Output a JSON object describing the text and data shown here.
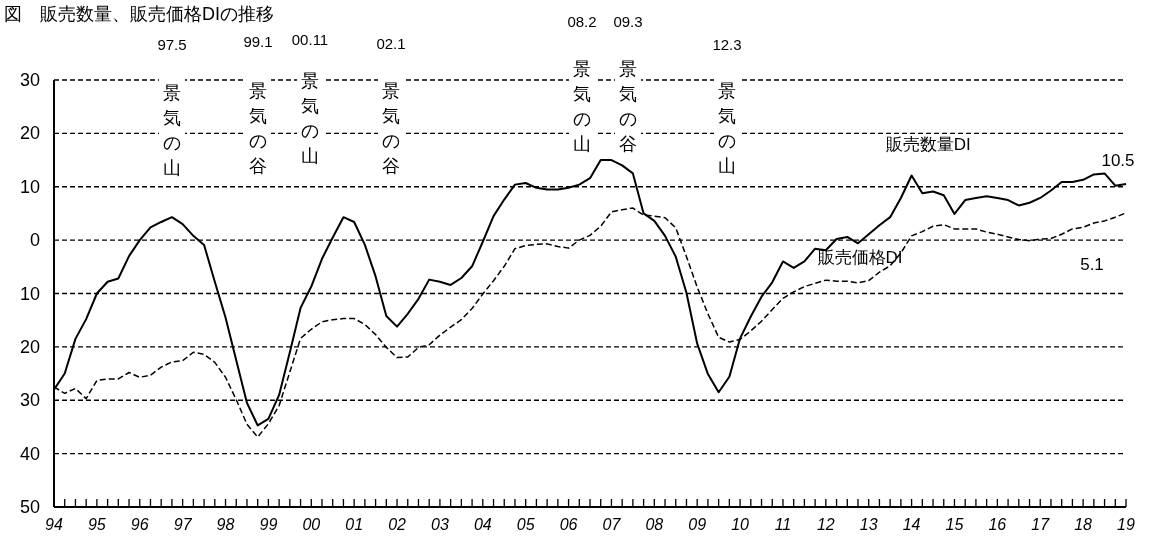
{
  "chart_data": {
    "type": "line",
    "title": "図　販売数量、販売価格DIの推移",
    "x": [
      1994,
      1994.25,
      1994.5,
      1994.75,
      1995,
      1995.25,
      1995.5,
      1995.75,
      1996,
      1996.25,
      1996.5,
      1996.75,
      1997,
      1997.25,
      1997.5,
      1997.75,
      1998,
      1998.25,
      1998.5,
      1998.75,
      1999,
      1999.25,
      1999.5,
      1999.75,
      2000,
      2000.25,
      2000.5,
      2000.75,
      2001,
      2001.25,
      2001.5,
      2001.75,
      2002,
      2002.25,
      2002.5,
      2002.75,
      2003,
      2003.25,
      2003.5,
      2003.75,
      2004,
      2004.25,
      2004.5,
      2004.75,
      2005,
      2005.25,
      2005.5,
      2005.75,
      2006,
      2006.25,
      2006.5,
      2006.75,
      2007,
      2007.25,
      2007.5,
      2007.75,
      2008,
      2008.25,
      2008.5,
      2008.75,
      2009,
      2009.25,
      2009.5,
      2009.75,
      2010,
      2010.25,
      2010.5,
      2010.75,
      2011,
      2011.25,
      2011.5,
      2011.75,
      2012,
      2012.25,
      2012.5,
      2012.75,
      2013,
      2013.25,
      2013.5,
      2013.75,
      2014,
      2014.25,
      2014.5,
      2014.75,
      2015,
      2015.25,
      2015.5,
      2015.75,
      2016,
      2016.25,
      2016.5,
      2016.75,
      2017,
      2017.25,
      2017.5,
      2017.75,
      2018,
      2018.25,
      2018.5,
      2018.75,
      2019
    ],
    "series": [
      {
        "name": "販売数量DI",
        "color": "#000000",
        "line_style": "solid",
        "values": [
          -28,
          -25,
          -18.5,
          -14.8,
          -10,
          -7.8,
          -7.2,
          -3,
          0,
          2.4,
          3.4,
          4.3,
          3,
          0.8,
          -0.9,
          -7.8,
          -14.5,
          -22.5,
          -30.5,
          -34.7,
          -33.5,
          -29,
          -21,
          -12.7,
          -8.7,
          -3.5,
          0.5,
          4.3,
          3.4,
          -0.9,
          -6.8,
          -14.2,
          -16.2,
          -13.8,
          -11,
          -7.4,
          -7.8,
          -8.4,
          -7.1,
          -4.9,
          -0.3,
          4.5,
          7.6,
          10.4,
          10.7,
          9.8,
          9.5,
          9.5,
          9.8,
          10.4,
          11.6,
          15,
          15,
          14,
          12.5,
          5,
          3.6,
          0.8,
          -3.1,
          -9.9,
          -19.4,
          -25.1,
          -28.5,
          -25.6,
          -18.4,
          -14.3,
          -10.6,
          -7.9,
          -4,
          -5.2,
          -4,
          -1.6,
          -1.9,
          0.2,
          0.6,
          -0.6,
          1.1,
          2.8,
          4.3,
          7.9,
          12.1,
          8.8,
          9.1,
          8.4,
          4.9,
          7.5,
          7.9,
          8.2,
          7.9,
          7.5,
          6.5,
          7,
          7.9,
          9.3,
          10.9,
          10.9,
          11.3,
          12.3,
          12.5,
          10.2,
          10.5
        ],
        "value_labels": [
          null,
          null,
          null,
          null,
          null,
          null,
          null,
          null,
          null,
          null,
          null,
          null,
          null,
          null,
          null,
          null,
          null,
          null,
          null,
          null,
          null,
          null,
          null,
          null,
          null,
          null,
          null,
          null,
          null,
          null,
          null,
          null,
          null,
          null,
          null,
          null,
          null,
          null,
          null,
          null,
          null,
          null,
          null,
          null,
          null,
          null,
          null,
          null,
          null,
          null,
          null,
          null,
          null,
          null,
          null,
          null,
          null,
          null,
          null,
          null,
          null,
          null,
          null,
          null,
          null,
          null,
          null,
          null,
          null,
          null,
          null,
          null,
          null,
          null,
          null,
          null,
          null,
          null,
          null,
          null,
          null,
          null,
          null,
          null,
          null,
          null,
          null,
          null,
          null,
          null,
          null,
          null,
          null,
          null,
          null,
          null,
          null,
          null,
          null,
          null,
          "10.5"
        ]
      },
      {
        "name": "販売価格DI",
        "color": "#000000",
        "line_style": "dashed",
        "values": [
          -27.5,
          -28.7,
          -27.8,
          -29.7,
          -26.3,
          -26,
          -26,
          -24.8,
          -25.7,
          -25.3,
          -23.8,
          -22.8,
          -22.6,
          -21,
          -21.4,
          -22.9,
          -25.7,
          -29.9,
          -34.5,
          -36.9,
          -34.4,
          -31,
          -24.7,
          -18.4,
          -16.7,
          -15.3,
          -14.9,
          -14.7,
          -14.7,
          -15.8,
          -17.7,
          -20.1,
          -22,
          -21.9,
          -20.1,
          -19.6,
          -17.8,
          -16.3,
          -14.9,
          -12.8,
          -10.1,
          -7.6,
          -4.9,
          -1.6,
          -1,
          -0.8,
          -0.7,
          -1.2,
          -1.5,
          0,
          0.9,
          2.6,
          5.3,
          5.7,
          6,
          4.7,
          4.5,
          4.2,
          2.3,
          -3.1,
          -8.8,
          -13.8,
          -18.2,
          -19.1,
          -18.6,
          -17,
          -15.2,
          -13,
          -10.9,
          -9.7,
          -8.7,
          -8.1,
          -7.5,
          -7.7,
          -7.7,
          -8,
          -7.6,
          -6,
          -4.8,
          -2.4,
          0.8,
          1.6,
          2.6,
          2.9,
          2.1,
          2.1,
          2.1,
          1.5,
          1.1,
          0.6,
          0.1,
          -0.1,
          0.2,
          0.3,
          1.1,
          2.1,
          2.4,
          3.2,
          3.6,
          4.3,
          5.1
        ],
        "value_labels": [
          null,
          null,
          null,
          null,
          null,
          null,
          null,
          null,
          null,
          null,
          null,
          null,
          null,
          null,
          null,
          null,
          null,
          null,
          null,
          null,
          null,
          null,
          null,
          null,
          null,
          null,
          null,
          null,
          null,
          null,
          null,
          null,
          null,
          null,
          null,
          null,
          null,
          null,
          null,
          null,
          null,
          null,
          null,
          null,
          null,
          null,
          null,
          null,
          null,
          null,
          null,
          null,
          null,
          null,
          null,
          null,
          null,
          null,
          null,
          null,
          null,
          null,
          null,
          null,
          null,
          null,
          null,
          null,
          null,
          null,
          null,
          null,
          null,
          null,
          null,
          null,
          null,
          null,
          null,
          null,
          null,
          null,
          null,
          null,
          null,
          null,
          null,
          null,
          null,
          null,
          null,
          null,
          null,
          null,
          null,
          null,
          null,
          null,
          null,
          null,
          "5.1"
        ]
      }
    ],
    "xlim": [
      1994,
      2019
    ],
    "xticks": [
      {
        "value": 1994,
        "label": "94"
      },
      {
        "value": 1994.25,
        "label": null
      },
      {
        "value": 1994.5,
        "label": null
      },
      {
        "value": 1994.75,
        "label": null
      },
      {
        "value": 1995,
        "label": "95"
      },
      {
        "value": 1995.25,
        "label": null
      },
      {
        "value": 1995.5,
        "label": null
      },
      {
        "value": 1995.75,
        "label": null
      },
      {
        "value": 1996,
        "label": "96"
      },
      {
        "value": 1996.25,
        "label": null
      },
      {
        "value": 1996.5,
        "label": null
      },
      {
        "value": 1996.75,
        "label": null
      },
      {
        "value": 1997,
        "label": "97"
      },
      {
        "value": 1997.25,
        "label": null
      },
      {
        "value": 1997.5,
        "label": null
      },
      {
        "value": 1997.75,
        "label": null
      },
      {
        "value": 1998,
        "label": "98"
      },
      {
        "value": 1998.25,
        "label": null
      },
      {
        "value": 1998.5,
        "label": null
      },
      {
        "value": 1998.75,
        "label": null
      },
      {
        "value": 1999,
        "label": "99"
      },
      {
        "value": 1999.25,
        "label": null
      },
      {
        "value": 1999.5,
        "label": null
      },
      {
        "value": 1999.75,
        "label": null
      },
      {
        "value": 2000,
        "label": "00"
      },
      {
        "value": 2000.25,
        "label": null
      },
      {
        "value": 2000.5,
        "label": null
      },
      {
        "value": 2000.75,
        "label": null
      },
      {
        "value": 2001,
        "label": "01"
      },
      {
        "value": 2001.25,
        "label": null
      },
      {
        "value": 2001.5,
        "label": null
      },
      {
        "value": 2001.75,
        "label": null
      },
      {
        "value": 2002,
        "label": "02"
      },
      {
        "value": 2002.25,
        "label": null
      },
      {
        "value": 2002.5,
        "label": null
      },
      {
        "value": 2002.75,
        "label": null
      },
      {
        "value": 2003,
        "label": "03"
      },
      {
        "value": 2003.25,
        "label": null
      },
      {
        "value": 2003.5,
        "label": null
      },
      {
        "value": 2003.75,
        "label": null
      },
      {
        "value": 2004,
        "label": "04"
      },
      {
        "value": 2004.25,
        "label": null
      },
      {
        "value": 2004.5,
        "label": null
      },
      {
        "value": 2004.75,
        "label": null
      },
      {
        "value": 2005,
        "label": "05"
      },
      {
        "value": 2005.25,
        "label": null
      },
      {
        "value": 2005.5,
        "label": null
      },
      {
        "value": 2005.75,
        "label": null
      },
      {
        "value": 2006,
        "label": "06"
      },
      {
        "value": 2006.25,
        "label": null
      },
      {
        "value": 2006.5,
        "label": null
      },
      {
        "value": 2006.75,
        "label": null
      },
      {
        "value": 2007,
        "label": "07"
      },
      {
        "value": 2007.25,
        "label": null
      },
      {
        "value": 2007.5,
        "label": null
      },
      {
        "value": 2007.75,
        "label": null
      },
      {
        "value": 2008,
        "label": "08"
      },
      {
        "value": 2008.25,
        "label": null
      },
      {
        "value": 2008.5,
        "label": null
      },
      {
        "value": 2008.75,
        "label": null
      },
      {
        "value": 2009,
        "label": "09"
      },
      {
        "value": 2009.25,
        "label": null
      },
      {
        "value": 2009.5,
        "label": null
      },
      {
        "value": 2009.75,
        "label": null
      },
      {
        "value": 2010,
        "label": "10"
      },
      {
        "value": 2010.25,
        "label": null
      },
      {
        "value": 2010.5,
        "label": null
      },
      {
        "value": 2010.75,
        "label": null
      },
      {
        "value": 2011,
        "label": "11"
      },
      {
        "value": 2011.25,
        "label": null
      },
      {
        "value": 2011.5,
        "label": null
      },
      {
        "value": 2011.75,
        "label": null
      },
      {
        "value": 2012,
        "label": "12"
      },
      {
        "value": 2012.25,
        "label": null
      },
      {
        "value": 2012.5,
        "label": null
      },
      {
        "value": 2012.75,
        "label": null
      },
      {
        "value": 2013,
        "label": "13"
      },
      {
        "value": 2013.25,
        "label": null
      },
      {
        "value": 2013.5,
        "label": null
      },
      {
        "value": 2013.75,
        "label": null
      },
      {
        "value": 2014,
        "label": "14"
      },
      {
        "value": 2014.25,
        "label": null
      },
      {
        "value": 2014.5,
        "label": null
      },
      {
        "value": 2014.75,
        "label": null
      },
      {
        "value": 2015,
        "label": "15"
      },
      {
        "value": 2015.25,
        "label": null
      },
      {
        "value": 2015.5,
        "label": null
      },
      {
        "value": 2015.75,
        "label": null
      },
      {
        "value": 2016,
        "label": "16"
      },
      {
        "value": 2016.25,
        "label": null
      },
      {
        "value": 2016.5,
        "label": null
      },
      {
        "value": 2016.75,
        "label": null
      },
      {
        "value": 2017,
        "label": "17"
      },
      {
        "value": 2017.25,
        "label": null
      },
      {
        "value": 2017.5,
        "label": null
      },
      {
        "value": 2017.75,
        "label": null
      },
      {
        "value": 2018,
        "label": "18"
      },
      {
        "value": 2018.25,
        "label": null
      },
      {
        "value": 2018.5,
        "label": null
      },
      {
        "value": 2018.75,
        "label": null
      },
      {
        "value": 2019,
        "label": "19"
      }
    ],
    "ylim": [
      -50,
      30
    ],
    "yticks": [
      30,
      20,
      10,
      0,
      {
        "value": -10,
        "label": "10"
      },
      {
        "value": -20,
        "label": "20"
      },
      {
        "value": -30,
        "label": "30"
      },
      {
        "value": -40,
        "label": "40"
      },
      {
        "value": -50,
        "label": "50"
      }
    ],
    "grid": "y",
    "annotations": [
      "97.5",
      "99.1",
      "00.11",
      "02.1",
      "08.2",
      "09.3",
      "12.3",
      "景気の山",
      "景気の谷",
      "景気の山",
      "景気の谷",
      "景気の山",
      "景気の谷",
      "景気の山"
    ]
  }
}
